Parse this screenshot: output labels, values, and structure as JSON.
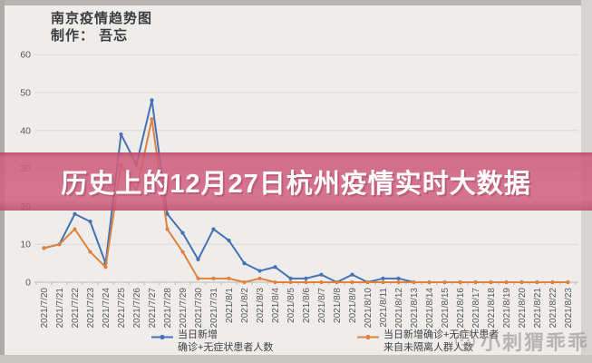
{
  "title": {
    "line1": "南京疫情趋势图",
    "line2": "制作： 吾忘"
  },
  "banner": {
    "text": "历史上的12月27日杭州疫情实时大数据",
    "bg_color": "#ce5d7c",
    "text_color": "#ffffff"
  },
  "legend": {
    "s1_line1": "当日新增",
    "s1_line2": "确诊+无症状患者人数",
    "s2_line1": "当日新增确诊+无症状患者",
    "s2_line2": "来自未隔离人群人数"
  },
  "watermark": {
    "text": "小刺猬乖乖"
  },
  "colors": {
    "series1": "#4472b4",
    "series2": "#e0823f",
    "grid": "#dbd9d6",
    "axis": "#bdbab7",
    "tick_label": "#595959"
  },
  "chart_data": {
    "type": "line",
    "title": "南京疫情趋势图",
    "xlabel": "",
    "ylabel": "",
    "ylim": [
      0,
      60
    ],
    "yticks": [
      0,
      10,
      20,
      30,
      40,
      50,
      60
    ],
    "grid": true,
    "legend_position": "bottom",
    "categories": [
      "2021/7/20",
      "2021/7/21",
      "2021/7/22",
      "2021/7/23",
      "2021/7/24",
      "2021/7/25",
      "2021/7/26",
      "2021/7/27",
      "2021/7/28",
      "2021/7/29",
      "2021/7/30",
      "2021/7/31",
      "2021/8/1",
      "2021/8/2",
      "2021/8/3",
      "2021/8/4",
      "2021/8/5",
      "2021/8/6",
      "2021/8/7",
      "2021/8/8",
      "2021/8/9",
      "2021/8/10",
      "2021/8/11",
      "2021/8/12",
      "2021/8/13",
      "2021/8/14",
      "2021/8/15",
      "2021/8/16",
      "2021/8/17",
      "2021/8/18",
      "2021/8/19",
      "2021/8/20",
      "2021/8/21",
      "2021/8/22",
      "2021/8/23"
    ],
    "series": [
      {
        "name": "当日新增确诊+无症状患者人数",
        "color": "#4472b4",
        "values": [
          9,
          10,
          18,
          16,
          5,
          39,
          31,
          48,
          18,
          13,
          6,
          14,
          11,
          5,
          3,
          4,
          1,
          1,
          2,
          0,
          2,
          0,
          1,
          1,
          0,
          0,
          0,
          0,
          0,
          0,
          0,
          0,
          0,
          0,
          0
        ]
      },
      {
        "name": "当日新增确诊+无症状患者来自未隔离人群人数",
        "color": "#e0823f",
        "values": [
          9,
          10,
          14,
          8,
          4,
          31,
          24,
          43,
          14,
          8,
          1,
          1,
          1,
          0,
          1,
          0,
          0,
          0,
          0,
          0,
          0,
          0,
          0,
          0,
          0,
          0,
          0,
          0,
          0,
          0,
          0,
          0,
          0,
          0,
          0
        ]
      }
    ]
  }
}
